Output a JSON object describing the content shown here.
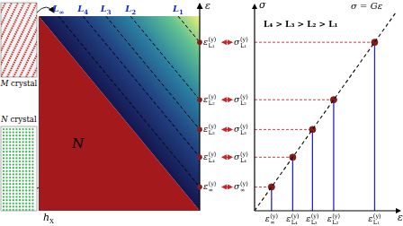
{
  "diagram": {
    "crystals": [
      {
        "symbol": "M",
        "text": "crystal"
      },
      {
        "symbol": "N",
        "text": "crystal"
      }
    ],
    "region_label": "N",
    "axes": {
      "vertical": "ε",
      "horizontal": {
        "base": "h",
        "sub": "X"
      }
    },
    "lines": [
      {
        "base": "L",
        "sub": "∞"
      },
      {
        "base": "L",
        "sub": "4"
      },
      {
        "base": "L",
        "sub": "3"
      },
      {
        "base": "L",
        "sub": "2"
      },
      {
        "base": "L",
        "sub": "1"
      }
    ],
    "strain_labels": [
      {
        "base": "ε",
        "sup": "(y)",
        "sub": "∞"
      },
      {
        "base": "ε",
        "sup": "(y)",
        "sub": "L₄"
      },
      {
        "base": "ε",
        "sup": "(y)",
        "sub": "L₃"
      },
      {
        "base": "ε",
        "sup": "(y)",
        "sub": "L₂"
      },
      {
        "base": "ε",
        "sup": "(y)",
        "sub": "L₁"
      }
    ]
  },
  "chart_data": {
    "type": "scatter",
    "x_label": "ε",
    "y_label": "σ",
    "annotation": "L₄ > L₃ > L₂ > L₁",
    "line": {
      "label": "σ = Gε",
      "x": [
        0,
        1
      ],
      "y": [
        0,
        1
      ],
      "line_style": "dashed"
    },
    "x": [
      0.12,
      0.27,
      0.41,
      0.56,
      0.85
    ],
    "values": [
      0.12,
      0.27,
      0.41,
      0.56,
      0.85
    ],
    "point_labels": [
      {
        "base": "σ",
        "sup": "(y)",
        "sub": "∞"
      },
      {
        "base": "σ",
        "sup": "(y)",
        "sub": "L₄"
      },
      {
        "base": "σ",
        "sup": "(y)",
        "sub": "L₃"
      },
      {
        "base": "σ",
        "sup": "(y)",
        "sub": "L₂"
      },
      {
        "base": "σ",
        "sup": "(y)",
        "sub": "L₁"
      }
    ],
    "color": "#8b1a1a",
    "xlim": [
      0,
      1
    ],
    "ylim": [
      0,
      1
    ],
    "xticks": [
      {
        "value": 0.12,
        "label": {
          "base": "ε",
          "sup": "(y)",
          "sub": "∞"
        }
      },
      {
        "value": 0.27,
        "label": {
          "base": "ε",
          "sup": "(y)",
          "sub": "L₄"
        }
      },
      {
        "value": 0.41,
        "label": {
          "base": "ε",
          "sup": "(y)",
          "sub": "L₃"
        }
      },
      {
        "value": 0.56,
        "label": {
          "base": "ε",
          "sup": "(y)",
          "sub": "L₂"
        }
      },
      {
        "value": 0.85,
        "label": {
          "base": "ε",
          "sup": "(y)",
          "sub": "L₁"
        }
      }
    ],
    "grid": false
  }
}
